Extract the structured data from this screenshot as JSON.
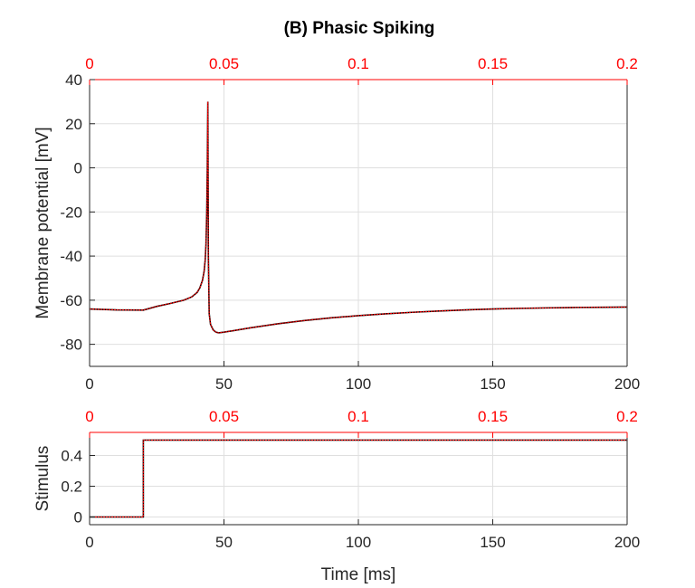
{
  "title": "(B) Phasic Spiking",
  "colors": {
    "secondary_axis": "#ff0000",
    "trace_primary": "#000000",
    "trace_secondary": "#ff0000",
    "grid": "#dfdfdf",
    "axis": "#262626"
  },
  "chart_data": [
    {
      "type": "line",
      "title": "(B) Phasic Spiking",
      "ylabel": "Membrane potential [mV]",
      "xlabel": "",
      "xlim": [
        0,
        200
      ],
      "ylim": [
        -90,
        40
      ],
      "xticks": [
        "0",
        "50",
        "100",
        "150",
        "200"
      ],
      "yticks": [
        "40",
        "20",
        "0",
        "-20",
        "-40",
        "-60",
        "-80"
      ],
      "top_axis": {
        "lim": [
          0,
          0.2
        ],
        "ticks": [
          "0",
          "0.05",
          "0.1",
          "0.15",
          "0.2"
        ],
        "color": "#ff0000"
      },
      "grid": true,
      "series": [
        {
          "color": "#000000",
          "x": [
            0,
            10,
            20,
            25,
            30,
            35,
            38,
            40,
            41,
            42,
            42.6,
            43,
            43.3,
            43.6,
            43.8,
            44,
            44.2,
            44.5,
            45,
            46,
            47,
            48,
            50,
            60,
            70,
            80,
            90,
            100,
            110,
            120,
            130,
            140,
            150,
            160,
            170,
            180,
            190,
            200
          ],
          "y": [
            -64,
            -64.4,
            -64.5,
            -62.8,
            -61.5,
            -60,
            -58.5,
            -56.5,
            -54.5,
            -51,
            -47,
            -42,
            -35,
            -20,
            0,
            30,
            -40,
            -66,
            -71,
            -73.5,
            -74.5,
            -74.8,
            -74.5,
            -72.5,
            -70.7,
            -69.2,
            -68,
            -67,
            -66.2,
            -65.5,
            -64.9,
            -64.4,
            -64,
            -63.7,
            -63.5,
            -63.3,
            -63.2,
            -63.1
          ]
        },
        {
          "color": "#ff0000",
          "x": [
            0,
            10,
            20,
            25,
            30,
            35,
            38,
            40,
            41,
            42,
            42.6,
            43,
            43.3,
            43.6,
            43.8,
            44,
            44.2,
            44.5,
            45,
            46,
            47,
            48,
            50,
            60,
            70,
            80,
            90,
            100,
            110,
            120,
            130,
            140,
            150,
            160,
            170,
            180,
            190,
            200
          ],
          "y": [
            -64,
            -64.4,
            -64.5,
            -62.8,
            -61.5,
            -60,
            -58.5,
            -56.5,
            -54.5,
            -51,
            -47,
            -42,
            -35,
            -20,
            0,
            30,
            -40,
            -66,
            -71,
            -73.5,
            -74.5,
            -74.8,
            -74.5,
            -72.5,
            -70.7,
            -69.2,
            -68,
            -67,
            -66.2,
            -65.5,
            -64.9,
            -64.4,
            -64,
            -63.7,
            -63.5,
            -63.3,
            -63.2,
            -63.1
          ]
        }
      ]
    },
    {
      "type": "line",
      "title": "",
      "ylabel": "Stimulus",
      "xlabel": "Time [ms]",
      "xlim": [
        0,
        200
      ],
      "ylim": [
        -0.05,
        0.55
      ],
      "xticks": [
        "0",
        "50",
        "100",
        "150",
        "200"
      ],
      "yticks": [
        "0",
        "0.2",
        "0.4"
      ],
      "top_axis": {
        "lim": [
          0,
          0.2
        ],
        "ticks": [
          "0",
          "0.05",
          "0.1",
          "0.15",
          "0.2"
        ],
        "color": "#ff0000"
      },
      "grid": true,
      "series": [
        {
          "color": "#000000",
          "x": [
            0,
            20,
            20,
            200
          ],
          "y": [
            0,
            0,
            0.5,
            0.5
          ]
        },
        {
          "color": "#ff0000",
          "x": [
            0,
            20,
            20,
            200
          ],
          "y": [
            0,
            0,
            0.5,
            0.5
          ]
        }
      ]
    }
  ]
}
